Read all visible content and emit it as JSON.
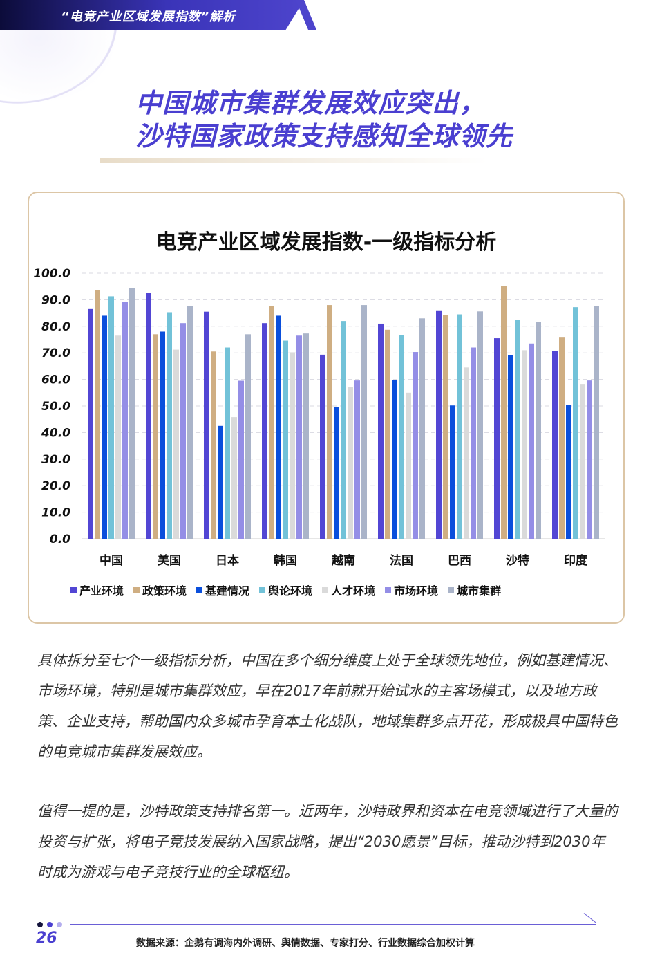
{
  "header": {
    "section_title": "“电竞产业区域发展指数”解析"
  },
  "headline": {
    "line1": "中国城市集群发展效应突出，",
    "line2": "沙特国家政策支持感知全球领先"
  },
  "chart_data": {
    "type": "bar",
    "title": "电竞产业区域发展指数-一级指标分析",
    "categories": [
      "中国",
      "美国",
      "日本",
      "韩国",
      "越南",
      "法国",
      "巴西",
      "沙特",
      "印度"
    ],
    "ylim": [
      0,
      100
    ],
    "yticks": [
      "0.0",
      "10.0",
      "20.0",
      "30.0",
      "40.0",
      "50.0",
      "60.0",
      "70.0",
      "80.0",
      "90.0",
      "100.0"
    ],
    "grid": true,
    "legend_position": "bottom",
    "series": [
      {
        "name": "产业环境",
        "color": "#5246d4",
        "values": [
          86.5,
          92.5,
          85.5,
          81.2,
          69.3,
          81.0,
          86.0,
          75.5,
          70.7
        ]
      },
      {
        "name": "政策环境",
        "color": "#cfae82",
        "values": [
          93.5,
          77.0,
          70.5,
          87.6,
          88.0,
          78.7,
          84.2,
          95.3,
          76.0
        ]
      },
      {
        "name": "基建情况",
        "color": "#0a4fdc",
        "values": [
          84.0,
          78.0,
          42.5,
          84.0,
          49.5,
          59.7,
          50.2,
          69.2,
          50.5
        ]
      },
      {
        "name": "舆论环境",
        "color": "#72c2d8",
        "values": [
          91.3,
          85.3,
          72.0,
          74.6,
          82.0,
          76.7,
          84.5,
          82.3,
          87.2
        ]
      },
      {
        "name": "人才环境",
        "color": "#dadada",
        "values": [
          76.5,
          71.2,
          45.8,
          70.2,
          57.2,
          55.0,
          64.5,
          71.0,
          58.3
        ]
      },
      {
        "name": "市场环境",
        "color": "#948ee6",
        "values": [
          89.3,
          81.2,
          59.5,
          76.5,
          59.6,
          70.3,
          72.0,
          73.5,
          59.6
        ]
      },
      {
        "name": "城市集群",
        "color": "#aab4c9",
        "values": [
          94.5,
          87.5,
          77.0,
          77.3,
          88.0,
          83.0,
          85.6,
          81.7,
          87.5
        ]
      }
    ]
  },
  "body": {
    "para1": "具体拆分至七个一级指标分析，中国在多个细分维度上处于全球领先地位，例如基建情况、市场环境，特别是城市集群效应，早在2017年前就开始试水的主客场模式，以及地方政策、企业支持，帮助国内众多城市孕育本土化战队，地域集群多点开花，形成极具中国特色的电竞城市集群发展效应。",
    "para2": "值得一提的是，沙特政策支持排名第一。近两年，沙特政界和资本在电竞领域进行了大量的投资与扩张，将电子竞技发展纳入国家战略，提出“2030愿景”目标，推动沙特到2030年时成为游戏与电子竞技行业的全球枢纽。"
  },
  "footer": {
    "page_number": "26",
    "source": "数据来源：企鹅有调海内外调研、舆情数据、专家打分、行业数据综合加权计算"
  }
}
